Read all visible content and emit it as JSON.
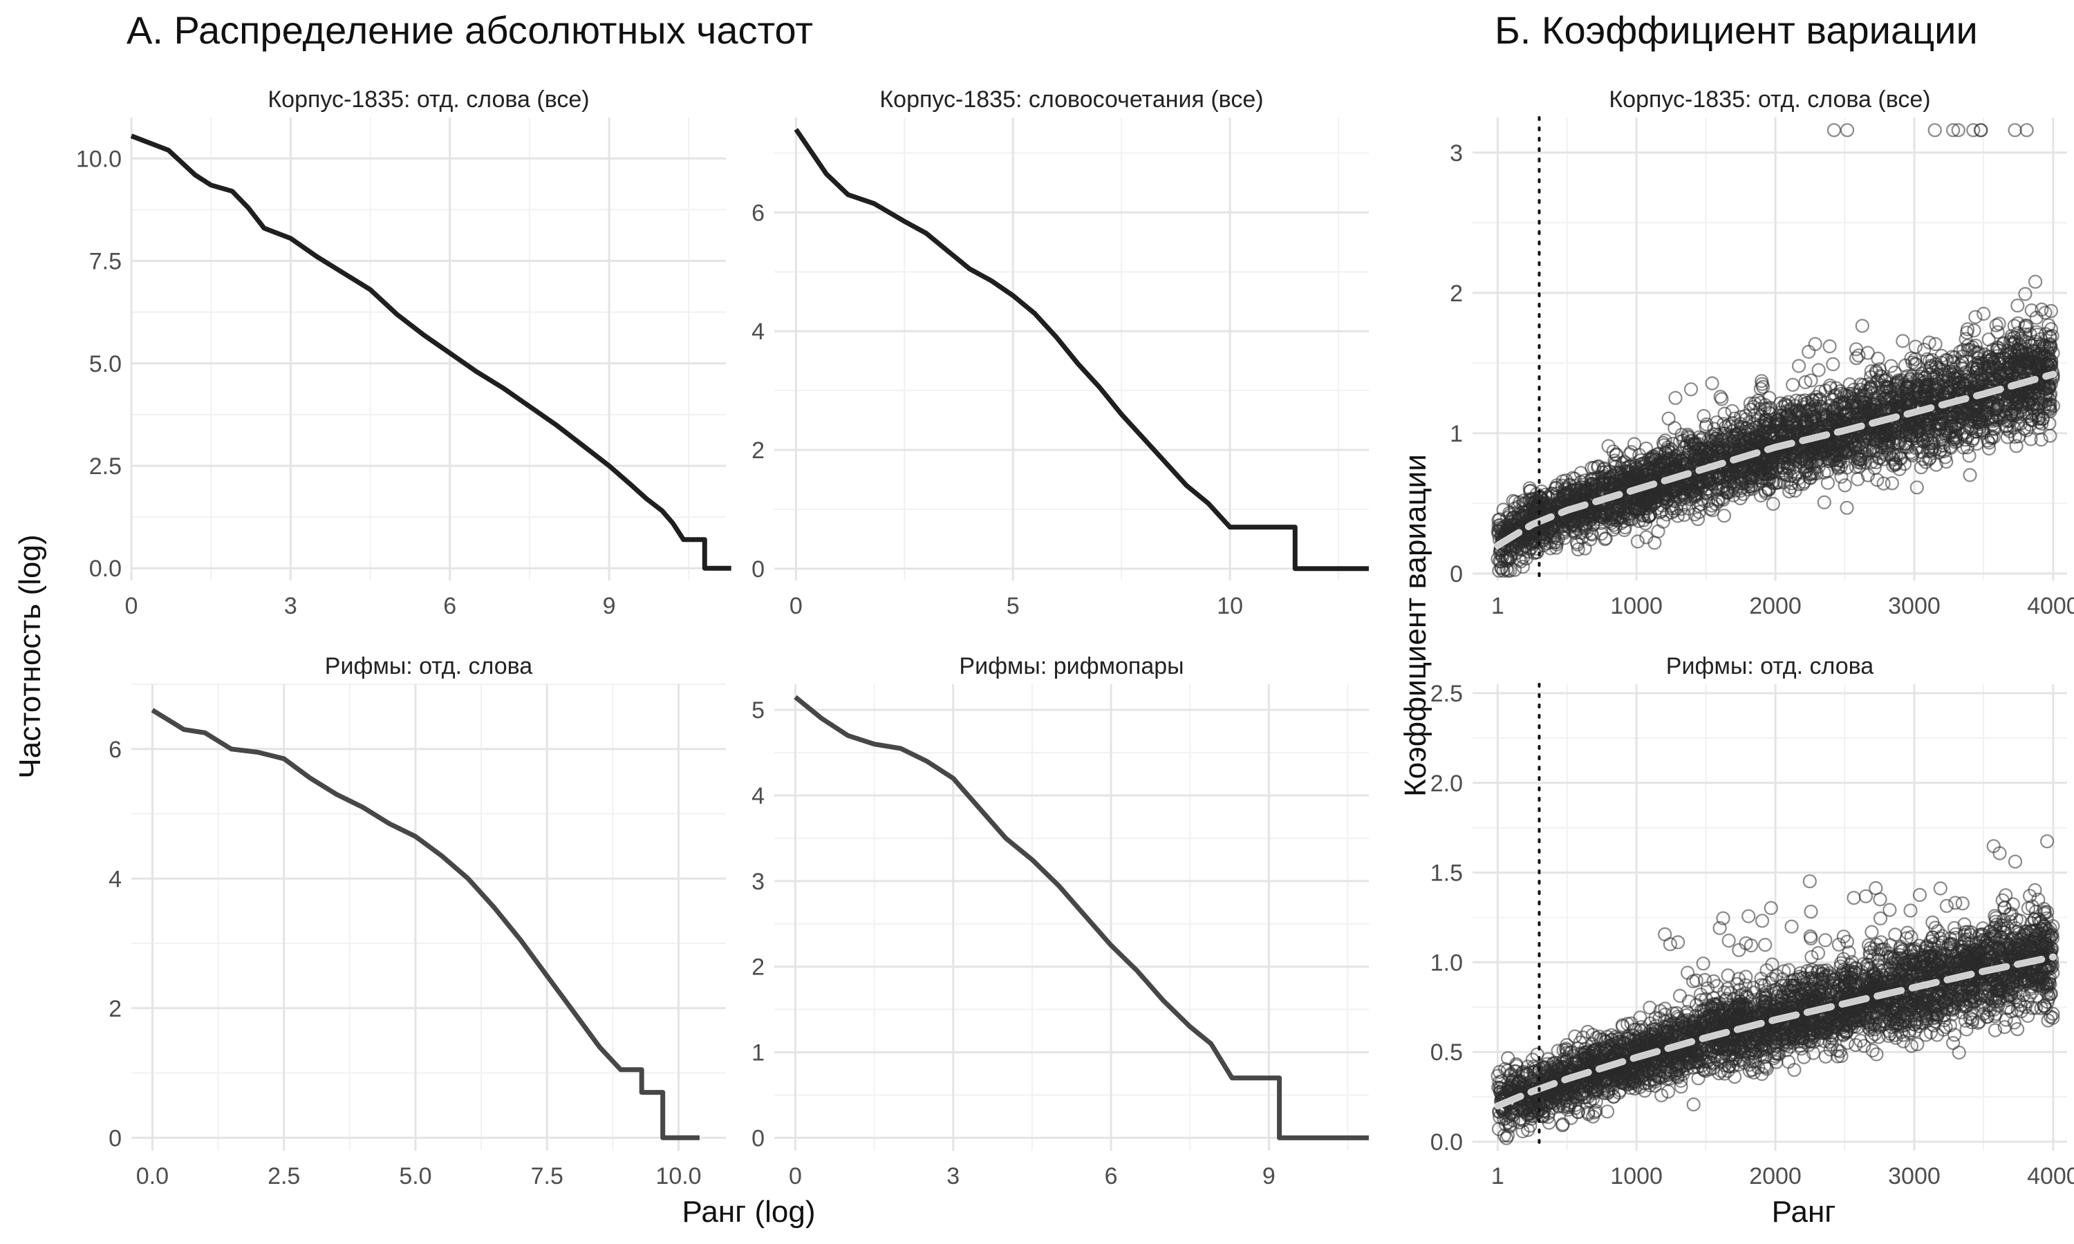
{
  "figure": {
    "title_a": "А. Распределение абсолютных частот",
    "title_b": "Б. Коэффициент вариации",
    "a_xlabel": "Ранг (log)",
    "a_ylabel": "Частотность (log)",
    "b_xlabel": "Ранг",
    "b_ylabel": "Коэффициент вариации"
  },
  "chart_data": [
    {
      "type": "line",
      "title": "Корпус-1835: отд. слова (все)",
      "xlim": [
        0,
        11.2
      ],
      "ylim": [
        -0.3,
        11.0
      ],
      "x_ticks": [
        0,
        3,
        6,
        9
      ],
      "x_tick_labels": [
        "0",
        "3",
        "6",
        "9"
      ],
      "y_ticks": [
        0,
        2.5,
        5,
        7.5,
        10
      ],
      "y_tick_labels": [
        "0.0",
        "2.5",
        "5.0",
        "7.5",
        "10.0"
      ],
      "color": "#1f1f1f",
      "x": [
        0,
        0.7,
        1.2,
        1.5,
        1.9,
        2.2,
        2.5,
        3.0,
        3.5,
        4.0,
        4.5,
        5.0,
        5.5,
        6.0,
        6.5,
        7.0,
        7.5,
        8.0,
        8.5,
        9.0,
        9.4,
        9.7,
        10.0,
        10.2,
        10.4,
        10.8,
        10.8,
        11.3
      ],
      "y": [
        10.55,
        10.2,
        9.6,
        9.35,
        9.2,
        8.8,
        8.3,
        8.05,
        7.6,
        7.2,
        6.8,
        6.2,
        5.7,
        5.25,
        4.8,
        4.4,
        3.95,
        3.5,
        3.0,
        2.5,
        2.05,
        1.7,
        1.4,
        1.1,
        0.7,
        0.7,
        0.0,
        0.0
      ]
    },
    {
      "type": "line",
      "title": "Корпус-1835: словосочетания (все)",
      "xlim": [
        -0.5,
        13.2
      ],
      "ylim": [
        -0.2,
        7.6
      ],
      "x_ticks": [
        0,
        5,
        10
      ],
      "x_tick_labels": [
        "0",
        "5",
        "10"
      ],
      "y_ticks": [
        0,
        2,
        4,
        6
      ],
      "y_tick_labels": [
        "0",
        "2",
        "4",
        "6"
      ],
      "color": "#1f1f1f",
      "x": [
        0,
        0.7,
        1.2,
        1.8,
        2.5,
        3.0,
        3.5,
        4.0,
        4.5,
        5.0,
        5.5,
        6.0,
        6.5,
        7.0,
        7.5,
        8.0,
        8.5,
        9.0,
        9.5,
        10.0,
        10.4,
        10.8,
        11.2,
        11.5,
        11.5,
        13.2
      ],
      "y": [
        7.4,
        6.65,
        6.3,
        6.15,
        5.85,
        5.65,
        5.35,
        5.05,
        4.85,
        4.6,
        4.3,
        3.9,
        3.45,
        3.05,
        2.6,
        2.2,
        1.8,
        1.4,
        1.1,
        0.7,
        0.7,
        0.7,
        0.7,
        0.7,
        0.0,
        0.0
      ]
    },
    {
      "type": "line",
      "title": "Рифмы: отд. слова",
      "xlim": [
        -0.4,
        10.9
      ],
      "ylim": [
        -0.2,
        7.0
      ],
      "x_ticks": [
        0,
        2.5,
        5,
        7.5,
        10
      ],
      "x_tick_labels": [
        "0.0",
        "2.5",
        "5.0",
        "7.5",
        "10.0"
      ],
      "y_ticks": [
        0,
        2,
        4,
        6
      ],
      "y_tick_labels": [
        "0",
        "2",
        "4",
        "6"
      ],
      "color": "#474747",
      "x": [
        0,
        0.6,
        1.0,
        1.5,
        2.0,
        2.5,
        3.0,
        3.5,
        4.0,
        4.5,
        5.0,
        5.5,
        6.0,
        6.5,
        7.0,
        7.5,
        8.0,
        8.5,
        8.9,
        9.3,
        9.3,
        9.7,
        9.7,
        10.4
      ],
      "y": [
        6.6,
        6.3,
        6.25,
        6.0,
        5.95,
        5.85,
        5.55,
        5.3,
        5.1,
        4.85,
        4.65,
        4.35,
        4.0,
        3.55,
        3.05,
        2.5,
        1.95,
        1.4,
        1.05,
        1.05,
        0.7,
        0.7,
        0.0,
        0.0
      ]
    },
    {
      "type": "line",
      "title": "Рифмы: рифмопары",
      "xlim": [
        -0.4,
        10.9
      ],
      "ylim": [
        -0.15,
        5.3
      ],
      "x_ticks": [
        0,
        3,
        6,
        9
      ],
      "x_tick_labels": [
        "0",
        "3",
        "6",
        "9"
      ],
      "y_ticks": [
        0,
        1,
        2,
        3,
        4,
        5
      ],
      "y_tick_labels": [
        "0",
        "1",
        "2",
        "3",
        "4",
        "5"
      ],
      "color": "#474747",
      "x": [
        0,
        0.5,
        1.0,
        1.5,
        2.0,
        2.5,
        3.0,
        3.5,
        4.0,
        4.5,
        5.0,
        5.5,
        6.0,
        6.5,
        7.0,
        7.5,
        7.9,
        8.3,
        8.5,
        9.2,
        9.2,
        10.9
      ],
      "y": [
        5.15,
        4.9,
        4.7,
        4.6,
        4.55,
        4.4,
        4.2,
        3.85,
        3.5,
        3.25,
        2.95,
        2.6,
        2.25,
        1.95,
        1.6,
        1.3,
        1.1,
        0.7,
        0.7,
        0.7,
        0.0,
        0.0
      ]
    },
    {
      "type": "scatter",
      "title": "Корпус-1835: отд. слова (все)",
      "xlim": [
        -180,
        4100
      ],
      "ylim": [
        -0.05,
        3.25
      ],
      "x_ticks": [
        1,
        1000,
        2000,
        3000,
        4000
      ],
      "x_tick_labels": [
        "1",
        "1000",
        "2000",
        "3000",
        "4000"
      ],
      "y_ticks": [
        0,
        1,
        2,
        3
      ],
      "y_tick_labels": [
        "0",
        "1",
        "2",
        "3"
      ],
      "vline_x": 300,
      "trend": {
        "x": [
          1,
          250,
          500,
          1000,
          1500,
          2000,
          2500,
          3000,
          3500,
          4000
        ],
        "y": [
          0.2,
          0.35,
          0.45,
          0.6,
          0.75,
          0.9,
          1.02,
          1.15,
          1.28,
          1.42
        ]
      },
      "n_points": 4000,
      "saturated_value": 3.16
    },
    {
      "type": "scatter",
      "title": "Рифмы: отд. слова",
      "xlim": [
        -180,
        4100
      ],
      "ylim": [
        -0.05,
        2.55
      ],
      "x_ticks": [
        1,
        1000,
        2000,
        3000,
        4000
      ],
      "x_tick_labels": [
        "1",
        "1000",
        "2000",
        "3000",
        "4000"
      ],
      "y_ticks": [
        0,
        0.5,
        1,
        1.5,
        2,
        2.5
      ],
      "y_tick_labels": [
        "0.0",
        "0.5",
        "1.0",
        "1.5",
        "2.0",
        "2.5"
      ],
      "vline_x": 300,
      "trend": {
        "x": [
          1,
          250,
          500,
          1000,
          1500,
          2000,
          2500,
          3000,
          3500,
          4000
        ],
        "y": [
          0.2,
          0.28,
          0.35,
          0.47,
          0.58,
          0.68,
          0.77,
          0.86,
          0.95,
          1.03
        ]
      },
      "n_points": 4000
    }
  ]
}
